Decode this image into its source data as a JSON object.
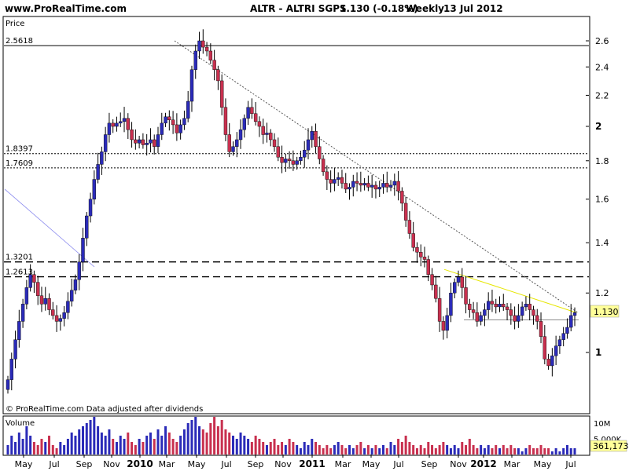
{
  "header": {
    "site": "www.ProRealTime.com",
    "instrument": "ALTR - ALTRI SGPS",
    "quote": "1.130 (-0.18%)",
    "period": "Weekly",
    "date": "13 Jul 2012"
  },
  "price_panel": {
    "label": "Price",
    "footer": "© ProRealTime.com  Data adjusted after dividends",
    "current_price": "1.130"
  },
  "volume_panel": {
    "label": "Volume",
    "current_volume": "361,173"
  },
  "colors": {
    "up": "#2b2bb8",
    "down": "#c8304f",
    "wick": "#000000",
    "price_box": "#ffff99",
    "trend_yellow": "#e6e600",
    "trend_blue": "#8888ee"
  },
  "chart_data": [
    {
      "type": "candlestick",
      "title": "ALTR - ALTRI SGPS",
      "ylabel": "Price",
      "y_scale": "log",
      "ylim": [
        0.8,
        2.8
      ],
      "y_ticks": [
        2.6,
        2.4,
        2.2,
        2,
        1.8,
        1.6,
        1.4,
        1.2,
        1
      ],
      "y_tick_labels": [
        "2.6",
        "2.4",
        "2.2",
        "2",
        "1.8",
        "1.6",
        "1.4",
        "1.2",
        "1"
      ],
      "x_ticks": [
        "May",
        "Jul",
        "Sep",
        "Nov",
        "2010",
        "Mar",
        "May",
        "Jul",
        "Sep",
        "Nov",
        "2011",
        "Mar",
        "May",
        "Jul",
        "Sep",
        "Nov",
        "2012",
        "Mar",
        "May",
        "Jul"
      ],
      "x_tick_bold": [
        false,
        false,
        false,
        false,
        true,
        false,
        false,
        false,
        false,
        false,
        true,
        false,
        false,
        false,
        false,
        false,
        true,
        false,
        false,
        false
      ],
      "horizontal_levels": [
        {
          "value": 2.5618,
          "label": "2.5618",
          "style": "solid"
        },
        {
          "value": 1.8397,
          "label": "1.8397",
          "style": "dotted"
        },
        {
          "value": 1.7609,
          "label": "1.7609",
          "style": "dotted"
        },
        {
          "value": 1.3201,
          "label": "1.3201",
          "style": "dashed"
        },
        {
          "value": 1.2613,
          "label": "1.2613",
          "style": "dashed"
        }
      ],
      "closes": [
        0.92,
        0.98,
        1.04,
        1.1,
        1.16,
        1.22,
        1.27,
        1.24,
        1.19,
        1.16,
        1.18,
        1.14,
        1.12,
        1.1,
        1.11,
        1.13,
        1.17,
        1.21,
        1.25,
        1.32,
        1.42,
        1.52,
        1.6,
        1.7,
        1.78,
        1.85,
        1.95,
        2.02,
        2.0,
        2.02,
        2.03,
        2.05,
        1.98,
        1.92,
        1.9,
        1.92,
        1.89,
        1.9,
        1.92,
        1.88,
        1.95,
        2.02,
        2.06,
        2.04,
        2.01,
        1.96,
        2.01,
        2.05,
        2.16,
        2.38,
        2.52,
        2.6,
        2.55,
        2.52,
        2.45,
        2.38,
        2.3,
        2.12,
        1.95,
        1.85,
        1.88,
        1.92,
        1.98,
        2.05,
        2.12,
        2.08,
        2.03,
        2.0,
        1.95,
        1.96,
        1.92,
        1.88,
        1.82,
        1.79,
        1.81,
        1.8,
        1.78,
        1.8,
        1.82,
        1.86,
        1.92,
        1.97,
        1.88,
        1.81,
        1.74,
        1.7,
        1.68,
        1.7,
        1.71,
        1.68,
        1.65,
        1.66,
        1.69,
        1.68,
        1.67,
        1.68,
        1.66,
        1.67,
        1.65,
        1.66,
        1.68,
        1.66,
        1.67,
        1.69,
        1.64,
        1.58,
        1.5,
        1.44,
        1.38,
        1.36,
        1.34,
        1.33,
        1.27,
        1.23,
        1.18,
        1.1,
        1.07,
        1.12,
        1.2,
        1.24,
        1.26,
        1.22,
        1.16,
        1.14,
        1.13,
        1.1,
        1.12,
        1.14,
        1.17,
        1.16,
        1.15,
        1.16,
        1.15,
        1.14,
        1.12,
        1.1,
        1.12,
        1.15,
        1.16,
        1.14,
        1.12,
        1.1,
        1.05,
        0.98,
        0.96,
        0.99,
        1.02,
        1.04,
        1.06,
        1.08,
        1.12,
        1.13
      ]
    },
    {
      "type": "bar",
      "title": "Volume",
      "ylim": [
        0,
        12000000
      ],
      "y_ticks": [
        10000000,
        5000000
      ],
      "y_tick_labels": [
        "10M",
        "5,000K"
      ],
      "values": [
        3,
        6,
        4,
        7,
        5,
        9,
        6,
        4,
        3,
        5,
        4,
        6,
        3,
        2,
        4,
        3,
        5,
        7,
        6,
        8,
        9,
        10,
        11,
        12,
        9,
        7,
        6,
        8,
        5,
        4,
        6,
        5,
        7,
        4,
        3,
        5,
        4,
        6,
        7,
        5,
        8,
        6,
        9,
        7,
        5,
        4,
        6,
        8,
        10,
        11,
        12,
        9,
        8,
        7,
        10,
        12,
        9,
        11,
        8,
        7,
        6,
        5,
        7,
        6,
        5,
        4,
        6,
        5,
        4,
        3,
        4,
        5,
        3,
        4,
        3,
        5,
        4,
        3,
        2,
        4,
        3,
        5,
        4,
        3,
        2,
        3,
        2,
        3,
        4,
        3,
        2,
        3,
        2,
        3,
        4,
        2,
        3,
        2,
        3,
        2,
        3,
        2,
        4,
        3,
        5,
        4,
        6,
        4,
        3,
        2,
        3,
        2,
        4,
        3,
        2,
        3,
        4,
        3,
        2,
        3,
        2,
        4,
        3,
        5,
        3,
        2,
        3,
        2,
        3,
        2,
        3,
        2,
        3,
        2,
        3,
        2,
        2,
        1,
        2,
        3,
        2,
        2,
        3,
        2,
        2,
        1,
        2,
        1,
        2,
        3,
        2,
        2
      ]
    }
  ]
}
